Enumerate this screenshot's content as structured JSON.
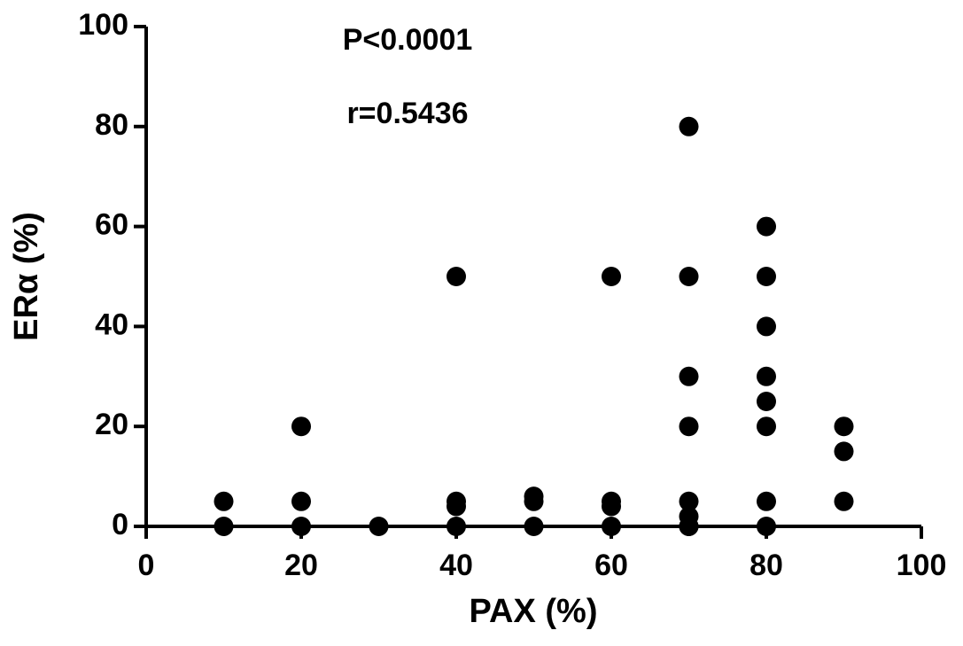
{
  "chart_data": {
    "type": "scatter",
    "xlabel": "PAX (%)",
    "ylabel": "ERα (%)",
    "annotations": [
      "P<0.0001",
      "r=0.5436"
    ],
    "xlim": [
      0,
      100
    ],
    "ylim": [
      0,
      100
    ],
    "xticks": [
      0,
      20,
      40,
      60,
      80,
      100
    ],
    "yticks": [
      0,
      20,
      40,
      60,
      80,
      100
    ],
    "grid": false,
    "series": [
      {
        "color": "#000000",
        "x": [
          10,
          10,
          20,
          20,
          20,
          30,
          40,
          40,
          40,
          40,
          50,
          50,
          50,
          60,
          60,
          60,
          60,
          70,
          70,
          70,
          70,
          70,
          70,
          70,
          70,
          80,
          80,
          80,
          80,
          80,
          80,
          80,
          80,
          90,
          90,
          90
        ],
        "values": [
          0,
          5,
          0,
          5,
          20,
          0,
          0,
          4,
          5,
          50,
          0,
          5,
          6,
          0,
          4,
          5,
          50,
          0,
          2,
          5,
          20,
          30,
          50,
          80,
          0,
          0,
          5,
          20,
          25,
          30,
          40,
          50,
          60,
          5,
          15,
          20
        ]
      }
    ]
  }
}
